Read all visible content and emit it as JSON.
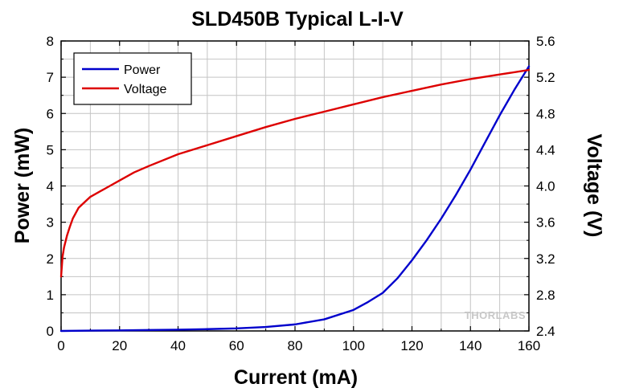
{
  "chart_data": {
    "type": "line",
    "title": "SLD450B Typical L-I-V",
    "xlabel": "Current (mA)",
    "ylabel": "Power (mW)",
    "y2label": "Voltage (V)",
    "xlim": [
      0,
      160
    ],
    "ylim": [
      0,
      8
    ],
    "y2lim": [
      2.4,
      5.6
    ],
    "xticks": [
      0,
      20,
      40,
      60,
      80,
      100,
      120,
      140,
      160
    ],
    "yticks": [
      0,
      1,
      2,
      3,
      4,
      5,
      6,
      7,
      8
    ],
    "y2ticks": [
      "2.4",
      "2.8",
      "3.2",
      "3.6",
      "4.0",
      "4.4",
      "4.8",
      "5.2",
      "5.6"
    ],
    "grid": true,
    "legend_position": "top-left",
    "series": [
      {
        "name": "Power",
        "axis": "left",
        "color": "#0000cc",
        "x": [
          0,
          10,
          20,
          30,
          40,
          50,
          60,
          70,
          80,
          90,
          100,
          105,
          110,
          115,
          120,
          125,
          130,
          135,
          140,
          145,
          150,
          155,
          160
        ],
        "y": [
          0,
          0.01,
          0.015,
          0.025,
          0.035,
          0.05,
          0.07,
          0.11,
          0.18,
          0.32,
          0.58,
          0.8,
          1.05,
          1.45,
          1.95,
          2.5,
          3.1,
          3.75,
          4.45,
          5.2,
          5.95,
          6.65,
          7.3
        ]
      },
      {
        "name": "Voltage",
        "axis": "right",
        "color": "#dd0000",
        "x": [
          0,
          0.5,
          1,
          2,
          3,
          4,
          5,
          6,
          8,
          10,
          15,
          20,
          25,
          30,
          40,
          50,
          60,
          70,
          80,
          90,
          100,
          110,
          120,
          130,
          140,
          150,
          160
        ],
        "y": [
          3.0,
          3.22,
          3.32,
          3.45,
          3.55,
          3.64,
          3.7,
          3.76,
          3.82,
          3.88,
          3.97,
          4.06,
          4.15,
          4.22,
          4.35,
          4.45,
          4.55,
          4.65,
          4.74,
          4.82,
          4.9,
          4.98,
          5.05,
          5.12,
          5.18,
          5.23,
          5.28
        ]
      }
    ]
  },
  "watermark": "THORLABS"
}
